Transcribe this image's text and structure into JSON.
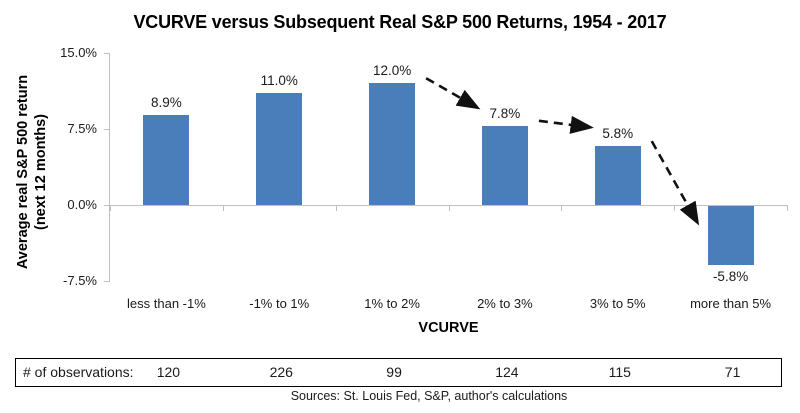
{
  "chart_data": {
    "type": "bar",
    "title": "VCURVE versus Subsequent Real S&P 500 Returns, 1954 - 2017",
    "xlabel": "VCURVE",
    "ylabel_line1": "Average real S&P 500 return",
    "ylabel_line2": "(next 12 months)",
    "categories": [
      "less than -1%",
      "-1% to 1%",
      "1% to 2%",
      "2% to 3%",
      "3% to 5%",
      "more than 5%"
    ],
    "values": [
      8.9,
      11.0,
      12.0,
      7.8,
      5.8,
      -5.8
    ],
    "value_labels": [
      "8.9%",
      "11.0%",
      "12.0%",
      "7.8%",
      "5.8%",
      "-5.8%"
    ],
    "y_ticks": [
      {
        "value": 15.0,
        "label": "15.0%"
      },
      {
        "value": 7.5,
        "label": "7.5%"
      },
      {
        "value": 0.0,
        "label": "0.0%"
      },
      {
        "value": -7.5,
        "label": "-7.5%"
      }
    ],
    "ylim": [
      -7.5,
      15.0
    ],
    "grid": false,
    "legend": "none",
    "bar_color": "#4a7ebb",
    "axis_color": "#bfbfbf",
    "arrow_color": "#111111",
    "annotations": {
      "trend_arrows": [
        {
          "from_index": 2,
          "to_index": 3
        },
        {
          "from_index": 3,
          "to_index": 4
        },
        {
          "from_index": 4,
          "to_index": 5
        }
      ]
    }
  },
  "observations": {
    "header": "# of observations:",
    "values": [
      "120",
      "226",
      "99",
      "124",
      "115",
      "71"
    ]
  },
  "footer": {
    "sources": "Sources: St. Louis Fed, S&P, author's calculations"
  }
}
